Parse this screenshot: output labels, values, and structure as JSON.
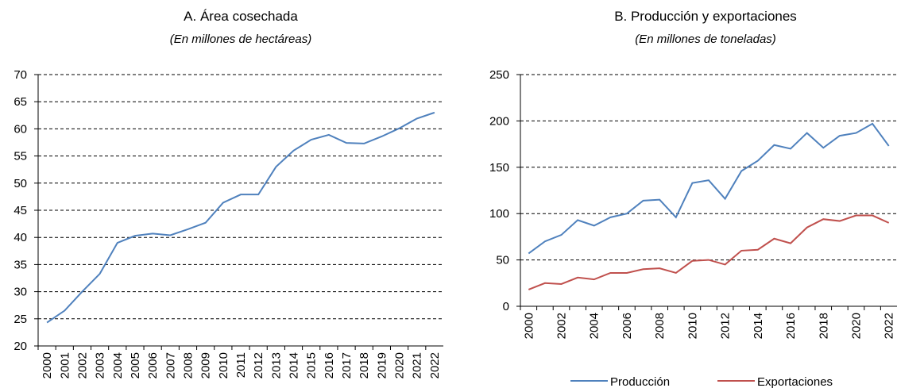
{
  "chart_data": [
    {
      "type": "line",
      "title": "A. Área cosechada",
      "subtitle": "(En millones de hectáreas)",
      "categories": [
        "2000",
        "2001",
        "2002",
        "2003",
        "2004",
        "2005",
        "2006",
        "2007",
        "2008",
        "2009",
        "2010",
        "2011",
        "2012",
        "2013",
        "2014",
        "2015",
        "2016",
        "2017",
        "2018",
        "2019",
        "2020",
        "2021",
        "2022"
      ],
      "values": [
        24.3,
        26.5,
        30,
        33.3,
        39,
        40.3,
        40.7,
        40.4,
        41.5,
        42.7,
        46.4,
        47.9,
        47.9,
        53,
        56,
        58,
        58.9,
        57.4,
        57.3,
        58.6,
        60.1,
        61.9,
        63
      ],
      "color": "#4f81bd",
      "ylim": [
        20,
        70
      ],
      "yticks": [
        20,
        25,
        30,
        35,
        40,
        45,
        50,
        55,
        60,
        65,
        70
      ],
      "grid": true
    },
    {
      "type": "line",
      "title": "B. Producción y exportaciones",
      "subtitle": "(En millones de toneladas)",
      "categories": [
        "2000",
        null,
        "2002",
        null,
        "2004",
        null,
        "2006",
        null,
        "2008",
        null,
        "2010",
        null,
        "2012",
        null,
        "2014",
        null,
        "2016",
        null,
        "2018",
        null,
        "2020",
        null,
        "2022"
      ],
      "series": [
        {
          "name": "Producción",
          "color": "#4f81bd",
          "values": [
            57,
            70,
            77,
            93,
            87,
            96,
            100,
            114,
            115,
            96,
            133,
            136,
            116,
            146,
            157,
            174,
            170,
            187,
            171,
            184,
            187,
            197,
            173
          ]
        },
        {
          "name": "Exportaciones",
          "color": "#c0504d",
          "values": [
            18,
            25,
            24,
            31,
            29,
            36,
            36,
            40,
            41,
            36,
            49,
            50,
            45,
            60,
            61,
            73,
            68,
            85,
            94,
            92,
            98,
            98,
            90
          ]
        }
      ],
      "ylim": [
        0,
        250
      ],
      "yticks": [
        0,
        50,
        100,
        150,
        200,
        250
      ],
      "grid": true,
      "legend": "bottom"
    }
  ]
}
